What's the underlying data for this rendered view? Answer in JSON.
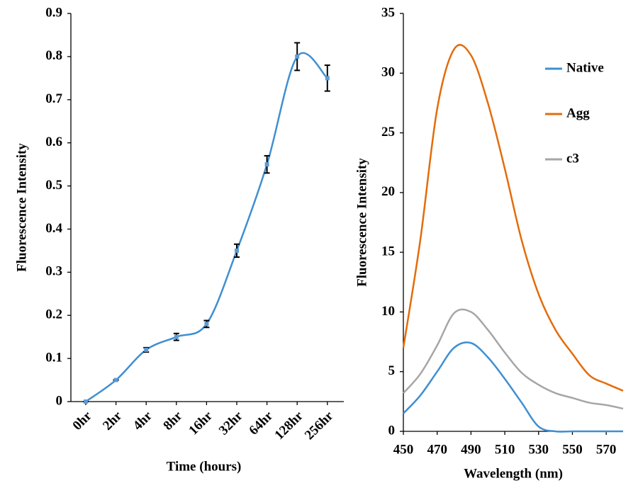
{
  "chart_data": [
    {
      "type": "line",
      "xlabel": "Time (hours)",
      "ylabel": "Fluorescence Intensity",
      "categories": [
        "0hr",
        "2hr",
        "4hr",
        "8hr",
        "16hr",
        "32hr",
        "64hr",
        "128hr",
        "256hr"
      ],
      "values": [
        0,
        0.05,
        0.12,
        0.15,
        0.18,
        0.35,
        0.55,
        0.8,
        0.75
      ],
      "errors": [
        0,
        0,
        0.005,
        0.008,
        0.008,
        0.015,
        0.02,
        0.032,
        0.03
      ],
      "color": "#3f8fd2",
      "ylim": [
        0,
        0.9
      ],
      "yticks": [
        0,
        0.1,
        0.2,
        0.3,
        0.4,
        0.5,
        0.6,
        0.7,
        0.8,
        0.9
      ]
    },
    {
      "type": "line",
      "xlabel": "Wavelength (nm)",
      "ylabel": "Fluorescence Intensity",
      "x": [
        450,
        460,
        470,
        480,
        490,
        500,
        510,
        520,
        530,
        540,
        550,
        560,
        570,
        580
      ],
      "series": [
        {
          "name": "Native",
          "color": "#3f8fd2",
          "values": [
            1.5,
            3.0,
            5.0,
            7.0,
            7.4,
            6.2,
            4.4,
            2.4,
            0.4,
            0,
            0,
            0,
            0,
            0
          ]
        },
        {
          "name": "Agg",
          "color": "#e36c0a",
          "values": [
            7,
            16,
            27,
            32,
            31.5,
            27.5,
            22,
            16,
            11.5,
            8.5,
            6.5,
            4.7,
            4.0,
            3.4
          ]
        },
        {
          "name": "c3",
          "color": "#a6a6a6",
          "values": [
            3.2,
            4.8,
            7.2,
            9.9,
            10.0,
            8.5,
            6.6,
            4.9,
            3.9,
            3.2,
            2.8,
            2.4,
            2.2,
            1.9
          ]
        }
      ],
      "xlim": [
        450,
        580
      ],
      "xticks": [
        450,
        470,
        490,
        510,
        530,
        550,
        570
      ],
      "ylim": [
        0,
        35
      ],
      "yticks": [
        0,
        5,
        10,
        15,
        20,
        25,
        30,
        35
      ],
      "legend": "upper right"
    }
  ]
}
